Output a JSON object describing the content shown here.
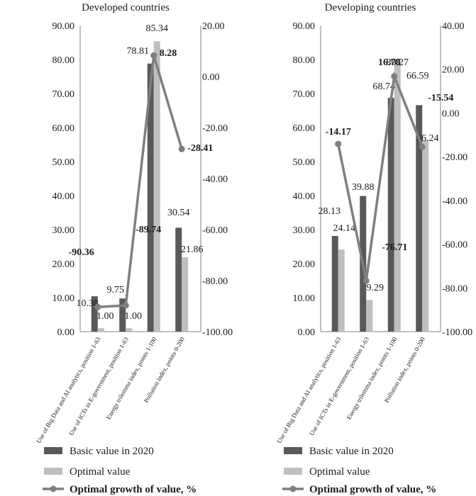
{
  "chart_data": [
    {
      "type": "bar",
      "title": "Developed countries",
      "categories": [
        "Use of Big Data and AI analytics, position 1-63",
        "Use of ICTs in E-government, position 1-63",
        "Energy trilemma index, points 1-100",
        "Pollution index, points 0-200"
      ],
      "series": [
        {
          "name": "Basic value in 2020",
          "kind": "bar",
          "axis": "left",
          "values": [
            10.38,
            9.75,
            78.81,
            30.54
          ],
          "labels": [
            "10.38",
            "9.75",
            "78.81",
            "30.54"
          ]
        },
        {
          "name": "Optimal value",
          "kind": "bar",
          "axis": "left",
          "values": [
            1.0,
            1.0,
            85.34,
            21.86
          ],
          "labels": [
            "1.00",
            "1.00",
            "85.34",
            "21.86"
          ]
        },
        {
          "name": "Optimal growth of value, %",
          "kind": "line",
          "axis": "right",
          "values": [
            -90.36,
            -89.74,
            8.28,
            -28.41
          ],
          "labels": [
            "-90.36",
            "-89.74",
            "8.28",
            "-28.41"
          ]
        }
      ],
      "left_axis": {
        "min": 0,
        "max": 90,
        "step": 10,
        "tick_labels": [
          "0.00",
          "10.00",
          "20.00",
          "30.00",
          "40.00",
          "50.00",
          "60.00",
          "70.00",
          "80.00",
          "90.00"
        ]
      },
      "right_axis": {
        "min": -100,
        "max": 20,
        "step": 20,
        "tick_labels": [
          "-100.00",
          "-80.00",
          "-60.00",
          "-40.00",
          "-20.00",
          "0.00",
          "20.00"
        ]
      },
      "grid": false
    },
    {
      "type": "bar",
      "title": "Developing countries",
      "categories": [
        "Use of Big Data and AI analytics, position 1-63",
        "Use of ICTs in E-government, position 1-63",
        "Energy trilemma index, points 1-100",
        "Pollution index, points 0-200"
      ],
      "series": [
        {
          "name": "Basic value in 2020",
          "kind": "bar",
          "axis": "left",
          "values": [
            28.13,
            39.88,
            68.74,
            66.59
          ],
          "labels": [
            "28.13",
            "39.88",
            "68.74",
            "66.59"
          ]
        },
        {
          "name": "Optimal value",
          "kind": "bar",
          "axis": "left",
          "values": [
            24.14,
            9.29,
            80.27,
            56.24
          ],
          "labels": [
            "24.14",
            "9.29",
            "80.27",
            "56.24"
          ]
        },
        {
          "name": "Optimal growth of value, %",
          "kind": "line",
          "axis": "right",
          "values": [
            -14.17,
            -76.71,
            16.78,
            -15.54
          ],
          "labels": [
            "-14.17",
            "-76.71",
            "16.78",
            "-15.54"
          ]
        }
      ],
      "left_axis": {
        "min": 0,
        "max": 90,
        "step": 10,
        "tick_labels": [
          "0.00",
          "10.00",
          "20.00",
          "30.00",
          "40.00",
          "50.00",
          "60.00",
          "70.00",
          "80.00",
          "90.00"
        ]
      },
      "right_axis": {
        "min": -100,
        "max": 40,
        "step": 20,
        "tick_labels": [
          "-100.00",
          "-80.00",
          "-60.00",
          "-40.00",
          "-20.00",
          "0.00",
          "20.00",
          "40.00"
        ]
      },
      "grid": false
    }
  ],
  "colors": {
    "basic": "#595959",
    "optimal": "#bfbfbf",
    "growth": "#7f7f7f"
  }
}
